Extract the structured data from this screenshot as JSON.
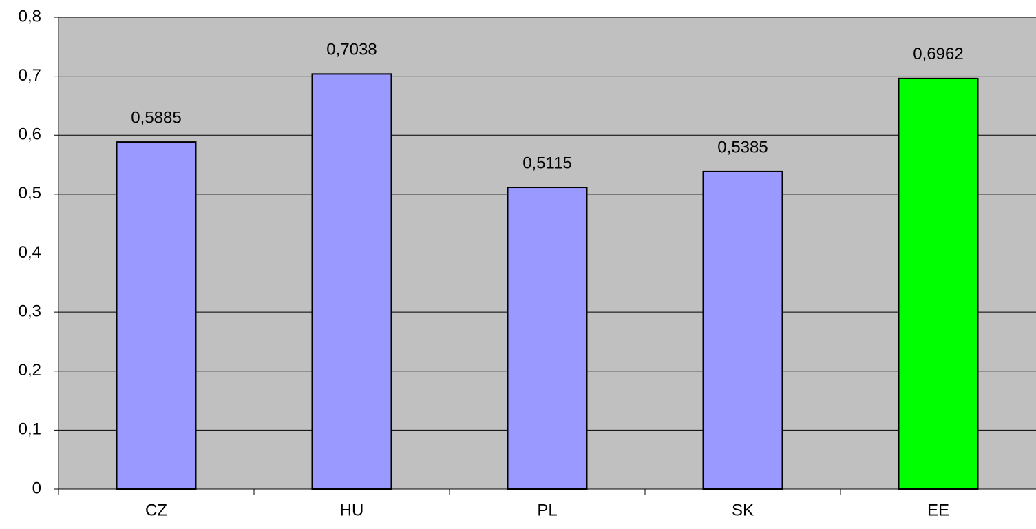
{
  "chart_data": {
    "type": "bar",
    "categories": [
      "CZ",
      "HU",
      "PL",
      "SK",
      "EE"
    ],
    "values": [
      0.5885,
      0.7038,
      0.5115,
      0.5385,
      0.6962
    ],
    "value_labels": [
      "0,5885",
      "0,7038",
      "0,5115",
      "0,5385",
      "0,6962"
    ],
    "colors": [
      "#9999ff",
      "#9999ff",
      "#9999ff",
      "#9999ff",
      "#00ff00"
    ],
    "ylim": [
      0,
      0.8
    ],
    "yticks": [
      0,
      {
        "value": 0.1,
        "label": "0,1"
      },
      {
        "value": 0.2,
        "label": "0,2"
      },
      {
        "value": 0.3,
        "label": "0,3"
      },
      {
        "value": 0.4,
        "label": "0,4"
      },
      {
        "value": 0.5,
        "label": "0,5"
      },
      {
        "value": 0.6,
        "label": "0,6"
      },
      {
        "value": 0.7,
        "label": "0,7"
      },
      {
        "value": 0.8,
        "label": "0,8"
      }
    ],
    "grid": true
  }
}
